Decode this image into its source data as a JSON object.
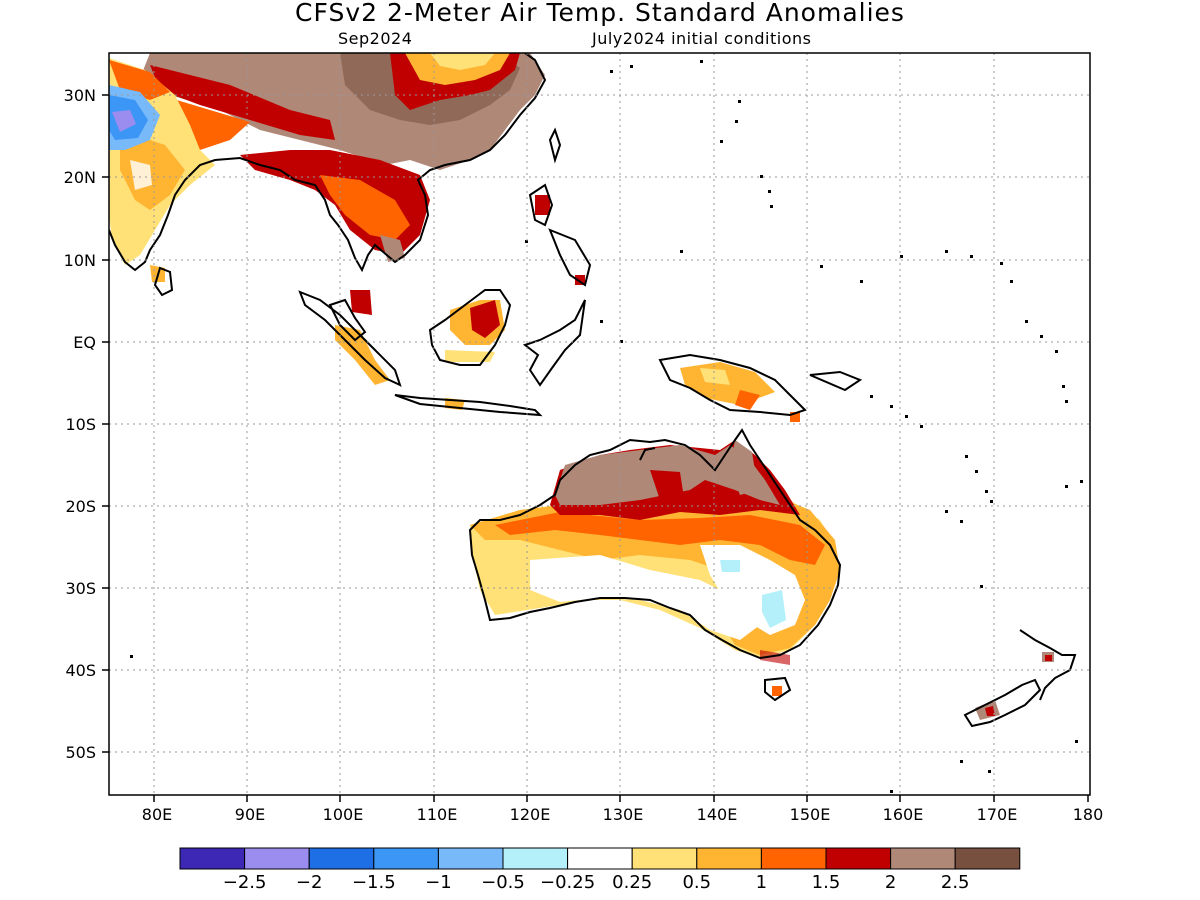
{
  "title": "CFSv2 2-Meter Air Temp. Standard Anomalies",
  "subtitle_left": "Sep2024",
  "subtitle_right": "July2024 initial conditions",
  "lat_labels": [
    "30N",
    "20N",
    "10N",
    "EQ",
    "10S",
    "20S",
    "30S",
    "40S",
    "50S"
  ],
  "lon_labels": [
    "80E",
    "90E",
    "100E",
    "110E",
    "120E",
    "130E",
    "140E",
    "150E",
    "160E",
    "170E",
    "180"
  ],
  "colorbar": {
    "colors": [
      "#3c28b4",
      "#9b8cf0",
      "#1e6ee6",
      "#3c96f5",
      "#78b9fa",
      "#b4f0fa",
      "#ffffff",
      "#ffe178",
      "#ffb432",
      "#ff6400",
      "#c00000",
      "#b08878",
      "#785040"
    ],
    "labels": [
      "−2.5",
      "−2",
      "−1.5",
      "−1",
      "−0.5",
      "−0.25",
      "0.25",
      "0.5",
      "1",
      "1.5",
      "2",
      "2.5"
    ]
  }
}
